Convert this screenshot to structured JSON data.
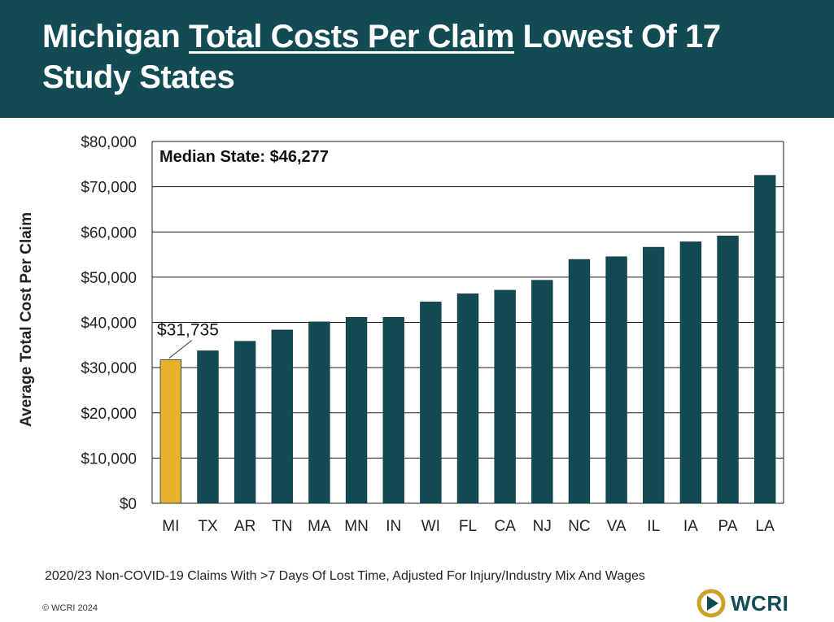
{
  "header": {
    "title_part1": "Michigan ",
    "title_underlined": "Total Costs Per Claim",
    "title_part2": " Lowest Of 17 Study States"
  },
  "chart_data": {
    "type": "bar",
    "title": "Michigan Total Costs Per Claim Lowest Of 17 Study States",
    "categories": [
      "MI",
      "TX",
      "AR",
      "TN",
      "MA",
      "MN",
      "IN",
      "WI",
      "FL",
      "CA",
      "NJ",
      "NC",
      "VA",
      "IL",
      "IA",
      "PA",
      "LA"
    ],
    "values": [
      31735,
      33700,
      35800,
      38300,
      40100,
      41100,
      41100,
      44500,
      46300,
      47100,
      49300,
      53900,
      54500,
      56600,
      57800,
      59100,
      72500
    ],
    "highlight_index": 0,
    "highlight_label": "$31,735",
    "xlabel": "",
    "ylabel": "Average Total Cost Per Claim",
    "ylim": [
      0,
      80000
    ],
    "yticks": [
      0,
      10000,
      20000,
      30000,
      40000,
      50000,
      60000,
      70000,
      80000
    ],
    "ytick_labels": [
      "$0",
      "$10,000",
      "$20,000",
      "$30,000",
      "$40,000",
      "$50,000",
      "$60,000",
      "$70,000",
      "$80,000"
    ],
    "annotation": "Median State: $46,277",
    "grid": true,
    "colors": {
      "bar": "#134b55",
      "highlight": "#e8b02b",
      "grid": "#1a1a1a"
    }
  },
  "footer": {
    "note": "2020/23 Non-COVID-19 Claims With >7 Days Of Lost Time, Adjusted For Injury/Industry Mix And Wages",
    "copyright": "© WCRI 2024",
    "logo_text": "WCRI"
  },
  "colors": {
    "header_bg": "#134b55",
    "logo_gold": "#c9a227"
  }
}
